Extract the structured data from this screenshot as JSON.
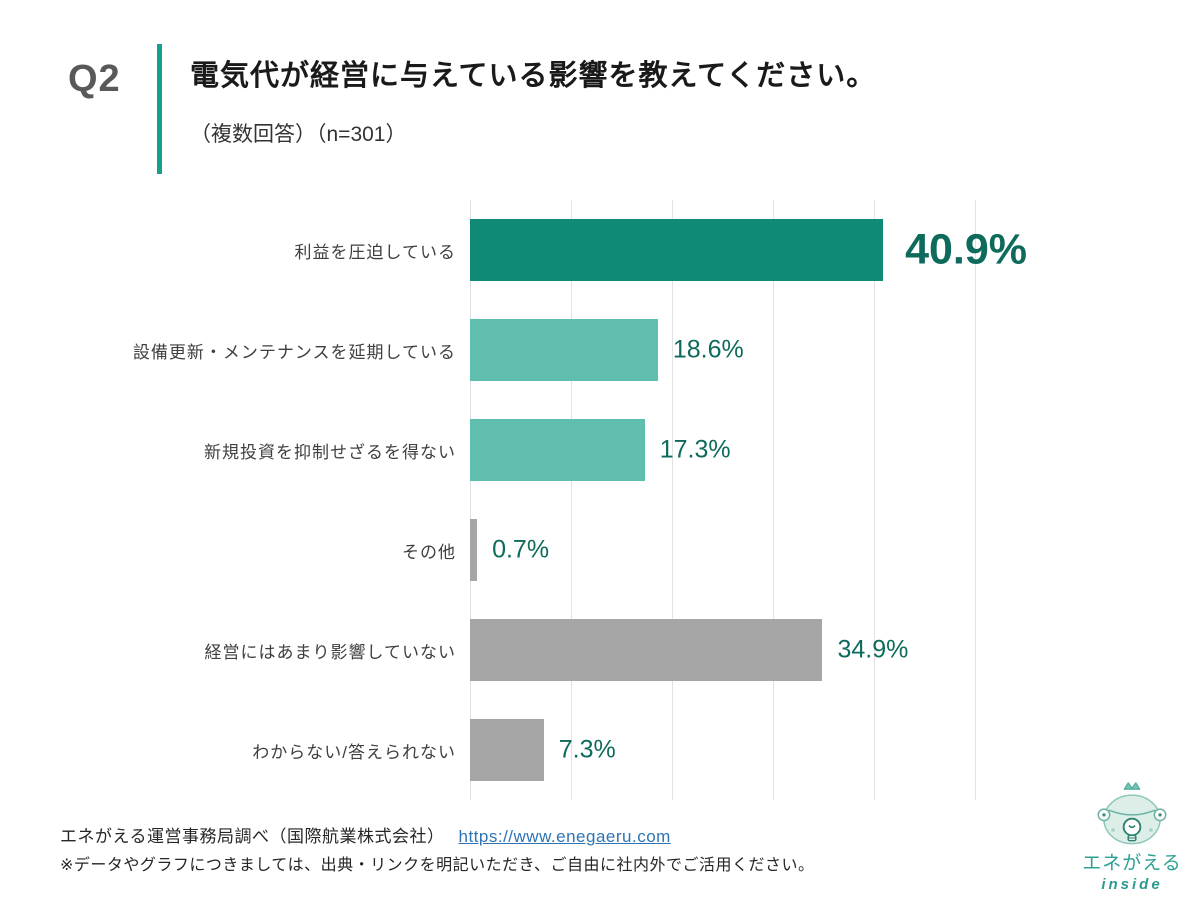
{
  "header": {
    "q_label": "Q2",
    "title": "電気代が経営に与えている影響を教えてください。",
    "subtitle": "（複数回答）（n=301）"
  },
  "chart_data": {
    "type": "bar",
    "orientation": "horizontal",
    "title": "電気代が経営に与えている影響を教えてください。",
    "subtitle": "（複数回答）（n=301）",
    "categories": [
      "利益を圧迫している",
      "設備更新・メンテナンスを延期している",
      "新規投資を抑制せざるを得ない",
      "その他",
      "経営にはあまり影響していない",
      "わからない/答えられない"
    ],
    "values": [
      40.9,
      18.6,
      17.3,
      0.7,
      34.9,
      7.3
    ],
    "value_labels": [
      "40.9%",
      "18.6%",
      "17.3%",
      "0.7%",
      "34.9%",
      "7.3%"
    ],
    "bar_colors": [
      "#0E8A76",
      "#5FBEAD",
      "#5FBEAD",
      "#A6A6A6",
      "#A6A6A6",
      "#A6A6A6"
    ],
    "emphasized": [
      true,
      false,
      false,
      false,
      false,
      false
    ],
    "xlim": [
      0,
      50
    ],
    "gridline_interval": 10,
    "grid": true,
    "legend": "none"
  },
  "footer": {
    "source_text": "エネがえる運営事務局調べ（国際航業株式会社）",
    "link_text": "https://www.enegaeru.com",
    "note": "※データやグラフにつきましては、出典・リンクを明記いただき、ご自由に社内外でご活用ください。"
  },
  "logo": {
    "brand": "エネがえる",
    "sub": "inside"
  },
  "colors": {
    "accent": "#14A08A",
    "bar_dark_teal": "#0E8A76",
    "bar_light_teal": "#5FBEAD",
    "bar_gray": "#A6A6A6",
    "value_text": "#0E6B5C",
    "grid": "#E2E1E6",
    "link": "#2E74B5",
    "logo_teal": "#2FA093"
  }
}
